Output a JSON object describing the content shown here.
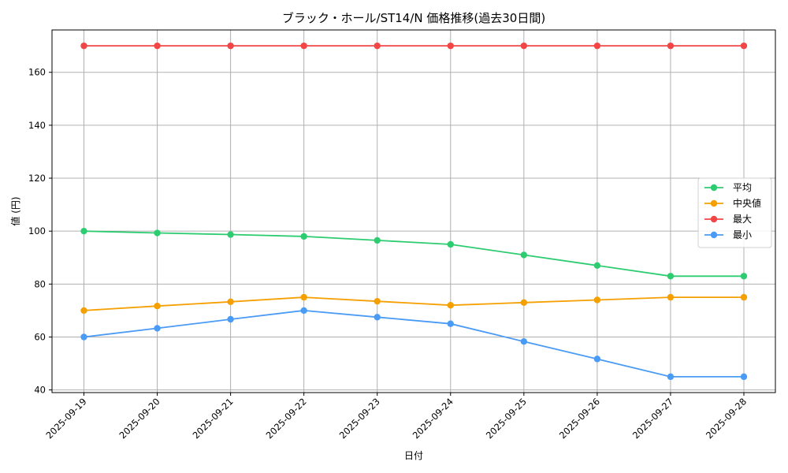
{
  "chart_data": {
    "type": "line",
    "title": "ブラック・ホール/ST14/N 価格推移(過去30日間)",
    "xlabel": "日付",
    "ylabel": "値 (円)",
    "x": [
      "2025-09-19",
      "2025-09-20",
      "2025-09-21",
      "2025-09-22",
      "2025-09-23",
      "2025-09-24",
      "2025-09-25",
      "2025-09-26",
      "2025-09-27",
      "2025-09-28"
    ],
    "ylim": [
      39,
      176
    ],
    "yticks": [
      40,
      60,
      80,
      100,
      120,
      140,
      160
    ],
    "grid": true,
    "legend_position": "center-right",
    "series": [
      {
        "name": "平均",
        "color": "#2ecc71",
        "values": [
          100,
          99.3,
          98.7,
          98,
          96.5,
          95,
          91,
          87,
          83,
          83
        ]
      },
      {
        "name": "中央値",
        "color": "#f5a000",
        "values": [
          70,
          71.7,
          73.3,
          75,
          73.5,
          72,
          73,
          74,
          75,
          75
        ]
      },
      {
        "name": "最大",
        "color": "#f24646",
        "values": [
          170,
          170,
          170,
          170,
          170,
          170,
          170,
          170,
          170,
          170
        ]
      },
      {
        "name": "最小",
        "color": "#4a9bf5",
        "values": [
          60,
          63.3,
          66.7,
          70,
          67.5,
          65,
          58.3,
          51.7,
          45,
          45
        ]
      }
    ]
  }
}
